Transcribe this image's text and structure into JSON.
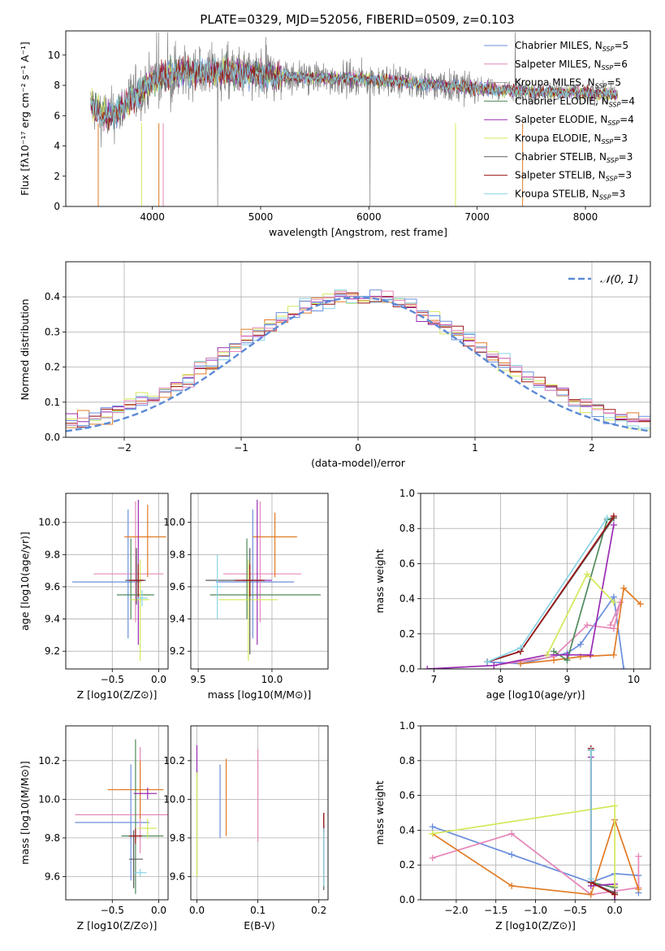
{
  "figure_title": "PLATE=0329, MJD=52056, FIBERID=0509, z=0.103",
  "series_colors": [
    "#6a8fdc",
    "#e687b8",
    "#9a9a9a",
    "#4e8a5a",
    "#9a2bb3",
    "#d4e85a",
    "#5b5b5b",
    "#9b1414",
    "#88d2e6"
  ],
  "chart_data": [
    {
      "id": "spectrum",
      "type": "line",
      "xlabel": "wavelength [Angstrom, rest frame]",
      "ylabel": "Flux [fλ10⁻¹⁷ erg cm⁻² s⁻¹ A⁻¹]",
      "xlim": [
        3200,
        8600
      ],
      "ylim": [
        0,
        11.6
      ],
      "xticks": [
        4000,
        5000,
        6000,
        7000,
        8000
      ],
      "yticks": [
        0,
        2,
        4,
        6,
        8,
        10
      ],
      "grid": false,
      "legend_position": "top-right",
      "continuum": [
        [
          3430,
          6.7
        ],
        [
          3500,
          6.3
        ],
        [
          3600,
          5.9
        ],
        [
          3700,
          6.4
        ],
        [
          3800,
          7.2
        ],
        [
          3900,
          7.6
        ],
        [
          4000,
          8.3
        ],
        [
          4200,
          8.8
        ],
        [
          4500,
          8.9
        ],
        [
          5000,
          8.7
        ],
        [
          5500,
          8.5
        ],
        [
          6000,
          8.4
        ],
        [
          6500,
          8.1
        ],
        [
          7000,
          7.8
        ],
        [
          7500,
          7.6
        ],
        [
          8000,
          7.5
        ],
        [
          8300,
          7.4
        ]
      ],
      "series": [
        {
          "name": "Chabrier MILES, N_SSP=5",
          "color": "#6a8fdc"
        },
        {
          "name": "Salpeter MILES, N_SSP=6",
          "color": "#e687b8"
        },
        {
          "name": "Kroupa MILES, N_SSP=5",
          "color": "#9a9a9a"
        },
        {
          "name": "Chabrier ELODIE, N_SSP=4",
          "color": "#4e8a5a"
        },
        {
          "name": "Salpeter ELODIE, N_SSP=4",
          "color": "#9a2bb3"
        },
        {
          "name": "Kroupa ELODIE, N_SSP=3",
          "color": "#d4e85a"
        },
        {
          "name": "Chabrier STELIB, N_SSP=3",
          "color": "#5b5b5b"
        },
        {
          "name": "Salpeter STELIB, N_SSP=3",
          "color": "#9b1414"
        },
        {
          "name": "Kroupa STELIB, N_SSP=3",
          "color": "#88d2e6"
        }
      ]
    },
    {
      "id": "residuals",
      "type": "line",
      "xlabel": "(data-model)/error",
      "ylabel": "Normed distribution",
      "xlim": [
        -2.5,
        2.5
      ],
      "ylim": [
        0,
        0.5
      ],
      "xticks": [
        -2,
        -1,
        0,
        1,
        2
      ],
      "yticks": [
        0.0,
        0.1,
        0.2,
        0.3,
        0.4
      ],
      "grid": true,
      "legend_position": "top-right",
      "legend_label": "𝒩(0, 1)",
      "bin_width": 0.1,
      "hist_colors": [
        "#e07b25",
        "#9a2bb3",
        "#d4e85a",
        "#88d2e6",
        "#9b1414",
        "#6a8fdc",
        "#e687b8"
      ]
    },
    {
      "id": "age-vs-Z",
      "type": "scatter",
      "xlabel": "Z [log10(Z/Z⊙)]",
      "ylabel": "age  [log10(age/yr)]",
      "xlim": [
        -1.0,
        0.1
      ],
      "ylim": [
        9.09,
        10.18
      ],
      "xticks": [
        -0.5,
        0.0
      ],
      "yticks": [
        9.2,
        9.4,
        9.6,
        9.8,
        10.0
      ],
      "grid": true,
      "points": [
        {
          "x": -0.33,
          "y": 9.63,
          "xerr": [
            0.6,
            0.14
          ],
          "yerr": [
            0.35,
            0.45
          ],
          "color": "#6a8fdc"
        },
        {
          "x": -0.25,
          "y": 9.68,
          "xerr": [
            0.45,
            0.3
          ],
          "yerr": [
            0.3,
            0.45
          ],
          "color": "#e687b8"
        },
        {
          "x": -0.12,
          "y": 9.91,
          "xerr": [
            0.25,
            0.2
          ],
          "yerr": [
            0.25,
            0.2
          ],
          "color": "#e07b25"
        },
        {
          "x": -0.3,
          "y": 9.55,
          "xerr": [
            0.15,
            0.25
          ],
          "yerr": [
            0.15,
            0.35
          ],
          "color": "#4e8a5a"
        },
        {
          "x": -0.22,
          "y": 9.64,
          "xerr": [
            0.08,
            0.05
          ],
          "yerr": [
            0.4,
            0.5
          ],
          "color": "#9a2bb3"
        },
        {
          "x": -0.2,
          "y": 9.52,
          "xerr": [
            0.1,
            0.1
          ],
          "yerr": [
            0.38,
            0.25
          ],
          "color": "#d4e85a"
        },
        {
          "x": -0.24,
          "y": 9.64,
          "xerr": [
            0.12,
            0.1
          ],
          "yerr": [
            0.15,
            0.2
          ],
          "color": "#5b5b5b"
        },
        {
          "x": -0.22,
          "y": 9.64,
          "xerr": [
            0.1,
            0.06
          ],
          "yerr": [
            0.1,
            0.1
          ],
          "color": "#9b1414"
        },
        {
          "x": -0.18,
          "y": 9.53,
          "xerr": [
            0.06,
            0.06
          ],
          "yerr": [
            0.05,
            0.05
          ],
          "color": "#88d2e6"
        }
      ]
    },
    {
      "id": "age-vs-mass",
      "type": "scatter",
      "xlabel": "mass [log10(M/M⊙)]",
      "ylabel": "",
      "xlim": [
        9.45,
        10.38
      ],
      "ylim": [
        9.09,
        10.18
      ],
      "xticks": [
        9.5,
        10.0
      ],
      "yticks": [
        9.2,
        9.4,
        9.6,
        9.8,
        10.0
      ],
      "grid": true,
      "points": [
        {
          "x": 9.87,
          "y": 9.63,
          "xerr": [
            0.25,
            0.28
          ],
          "yerr": [
            0.35,
            0.45
          ],
          "color": "#6a8fdc"
        },
        {
          "x": 9.92,
          "y": 9.68,
          "xerr": [
            0.25,
            0.28
          ],
          "yerr": [
            0.3,
            0.45
          ],
          "color": "#e687b8"
        },
        {
          "x": 10.02,
          "y": 9.91,
          "xerr": [
            0.15,
            0.15
          ],
          "yerr": [
            0.25,
            0.15
          ],
          "color": "#e07b25"
        },
        {
          "x": 9.83,
          "y": 9.55,
          "xerr": [
            0.25,
            0.5
          ],
          "yerr": [
            0.15,
            0.35
          ],
          "color": "#4e8a5a"
        },
        {
          "x": 9.9,
          "y": 9.64,
          "xerr": [
            0.1,
            0.1
          ],
          "yerr": [
            0.4,
            0.5
          ],
          "color": "#9a2bb3"
        },
        {
          "x": 9.84,
          "y": 9.52,
          "xerr": [
            0.2,
            0.2
          ],
          "yerr": [
            0.38,
            0.25
          ],
          "color": "#d4e85a"
        },
        {
          "x": 9.85,
          "y": 9.64,
          "xerr": [
            0.3,
            0.1
          ],
          "yerr": [
            0.46,
            0.2
          ],
          "color": "#5b5b5b"
        },
        {
          "x": 9.85,
          "y": 9.64,
          "xerr": [
            0.1,
            0.1
          ],
          "yerr": [
            0.1,
            0.1
          ],
          "color": "#9b1414"
        },
        {
          "x": 9.63,
          "y": 9.6,
          "xerr": [
            0.03,
            0.03
          ],
          "yerr": [
            0.2,
            0.2
          ],
          "color": "#88d2e6"
        }
      ]
    },
    {
      "id": "mass-weight-vs-age",
      "type": "line",
      "xlabel": "age  [log10(age/yr)]",
      "ylabel": "mass weight",
      "xlim": [
        6.8,
        10.25
      ],
      "ylim": [
        0,
        1.0
      ],
      "xticks": [
        7,
        8,
        9,
        10
      ],
      "yticks": [
        0.0,
        0.2,
        0.4,
        0.6,
        0.8,
        1.0
      ],
      "grid": true,
      "series": [
        {
          "color": "#6a8fdc",
          "x": [
            7.8,
            8.3,
            9.0,
            9.2,
            9.7,
            9.85
          ],
          "y": [
            0.04,
            0.03,
            0.09,
            0.14,
            0.41,
            0.0
          ]
        },
        {
          "color": "#e687b8",
          "x": [
            7.9,
            8.8,
            9.3,
            9.7,
            9.8,
            9.65
          ],
          "y": [
            0.02,
            0.07,
            0.25,
            0.23,
            0.38,
            0.25
          ]
        },
        {
          "color": "#e07b25",
          "x": [
            8.3,
            8.8,
            9.2,
            9.7,
            9.85,
            10.1
          ],
          "y": [
            0.03,
            0.05,
            0.07,
            0.08,
            0.46,
            0.37
          ]
        },
        {
          "color": "#4e8a5a",
          "x": [
            8.8,
            9.0,
            9.6,
            9.7
          ],
          "y": [
            0.1,
            0.05,
            0.85,
            0.86
          ]
        },
        {
          "color": "#9a2bb3",
          "x": [
            6.9,
            7.9,
            8.7,
            9.0,
            9.35,
            9.7
          ],
          "y": [
            0.0,
            0.02,
            0.08,
            0.08,
            0.08,
            0.82
          ]
        },
        {
          "color": "#d4e85a",
          "x": [
            8.7,
            9.3,
            9.7
          ],
          "y": [
            0.08,
            0.54,
            0.38
          ]
        },
        {
          "color": "#5b5b5b",
          "x": [
            7.8,
            8.3,
            9.7
          ],
          "y": [
            0.04,
            0.1,
            0.86
          ]
        },
        {
          "color": "#9b1414",
          "x": [
            7.8,
            8.3,
            9.7
          ],
          "y": [
            0.04,
            0.1,
            0.87
          ]
        },
        {
          "color": "#88d2e6",
          "x": [
            7.8,
            8.3,
            9.6
          ],
          "y": [
            0.04,
            0.12,
            0.86
          ]
        }
      ]
    },
    {
      "id": "mass-vs-Z",
      "type": "scatter",
      "xlabel": "Z [log10(Z/Z⊙)]",
      "ylabel": "mass [log10(M/M⊙)]",
      "xlim": [
        -1.0,
        0.1
      ],
      "ylim": [
        9.48,
        10.38
      ],
      "xticks": [
        -0.5,
        0.0
      ],
      "yticks": [
        9.6,
        9.8,
        10.0,
        10.2
      ],
      "grid": true,
      "points": [
        {
          "x": -0.3,
          "y": 9.88,
          "xerr": [
            0.6,
            0.2
          ],
          "yerr": [
            0.3,
            0.3
          ],
          "color": "#6a8fdc"
        },
        {
          "x": -0.2,
          "y": 9.92,
          "xerr": [
            0.7,
            0.3
          ],
          "yerr": [
            0.2,
            0.35
          ],
          "color": "#e687b8"
        },
        {
          "x": -0.2,
          "y": 10.05,
          "xerr": [
            0.35,
            0.25
          ],
          "yerr": [
            0.15,
            0.15
          ],
          "color": "#e07b25"
        },
        {
          "x": -0.25,
          "y": 9.81,
          "xerr": [
            0.15,
            0.3
          ],
          "yerr": [
            0.3,
            0.5
          ],
          "color": "#4e8a5a"
        },
        {
          "x": -0.12,
          "y": 10.03,
          "xerr": [
            0.15,
            0.1
          ],
          "yerr": [
            0.03,
            0.03
          ],
          "color": "#9a2bb3"
        },
        {
          "x": -0.12,
          "y": 9.85,
          "xerr": [
            0.1,
            0.1
          ],
          "yerr": [
            0.05,
            0.05
          ],
          "color": "#d4e85a"
        },
        {
          "x": -0.27,
          "y": 9.69,
          "xerr": [
            0.05,
            0.1
          ],
          "yerr": [
            0.15,
            0.15
          ],
          "color": "#5b5b5b"
        },
        {
          "x": -0.25,
          "y": 9.81,
          "xerr": [
            0.07,
            0.07
          ],
          "yerr": [
            0.04,
            0.04
          ],
          "color": "#9b1414"
        },
        {
          "x": -0.2,
          "y": 9.62,
          "xerr": [
            0.07,
            0.07
          ],
          "yerr": [
            0.02,
            0.02
          ],
          "color": "#88d2e6"
        }
      ]
    },
    {
      "id": "mass-vs-EBV",
      "type": "scatter",
      "xlabel": "E(B-V)",
      "ylabel": "",
      "xlim": [
        -0.01,
        0.215
      ],
      "ylim": [
        9.48,
        10.38
      ],
      "xticks": [
        0.0,
        0.1,
        0.2
      ],
      "yticks": [
        9.6,
        9.8,
        10.0,
        10.2
      ],
      "grid": true,
      "points": [
        {
          "x": 0.038,
          "y": 9.99,
          "xerr": [
            0,
            0
          ],
          "yerr": [
            0.19,
            0.19
          ],
          "color": "#6a8fdc"
        },
        {
          "x": 0.1,
          "y": 10.02,
          "xerr": [
            0,
            0
          ],
          "yerr": [
            0.24,
            0.24
          ],
          "color": "#e687b8"
        },
        {
          "x": 0.048,
          "y": 10.01,
          "xerr": [
            0,
            0
          ],
          "yerr": [
            0.2,
            0.2
          ],
          "color": "#e07b25"
        },
        {
          "x": 0.0,
          "y": 9.85,
          "xerr": [
            0,
            0
          ],
          "yerr": [
            0.25,
            0.3
          ],
          "color": "#4e8a5a"
        },
        {
          "x": 0.0,
          "y": 10.2,
          "xerr": [
            0,
            0
          ],
          "yerr": [
            0.08,
            0.08
          ],
          "color": "#9a2bb3"
        },
        {
          "x": 0.0,
          "y": 9.87,
          "xerr": [
            0,
            0
          ],
          "yerr": [
            0.27,
            0.27
          ],
          "color": "#d4e85a"
        },
        {
          "x": 0.208,
          "y": 9.73,
          "xerr": [
            0,
            0
          ],
          "yerr": [
            0.2,
            0.2
          ],
          "color": "#5b5b5b"
        },
        {
          "x": 0.208,
          "y": 9.88,
          "xerr": [
            0,
            0
          ],
          "yerr": [
            0.05,
            0.05
          ],
          "color": "#9b1414"
        },
        {
          "x": 0.208,
          "y": 9.7,
          "xerr": [
            0,
            0
          ],
          "yerr": [
            0.15,
            0.15
          ],
          "color": "#88d2e6"
        }
      ]
    },
    {
      "id": "mass-weight-vs-Z",
      "type": "line",
      "xlabel": "Z [log10(Z/Z⊙)]",
      "ylabel": "mass weight",
      "xlim": [
        -2.45,
        0.45
      ],
      "ylim": [
        0,
        1.0
      ],
      "xticks": [
        -2.0,
        -1.5,
        -1.0,
        -0.5,
        0.0
      ],
      "yticks": [
        0.0,
        0.2,
        0.4,
        0.6,
        0.8,
        1.0
      ],
      "grid": true,
      "series": [
        {
          "color": "#6a8fdc",
          "x": [
            -2.3,
            -1.3,
            -0.3,
            0.0,
            0.3,
            0.3
          ],
          "y": [
            0.42,
            0.26,
            0.1,
            0.15,
            0.14,
            0.04
          ]
        },
        {
          "color": "#e687b8",
          "x": [
            -2.3,
            -1.3,
            -0.3,
            0.3,
            0.3
          ],
          "y": [
            0.24,
            0.38,
            0.03,
            0.07,
            0.25
          ]
        },
        {
          "color": "#e07b25",
          "x": [
            -2.3,
            -1.3,
            -0.3,
            0.0,
            0.3
          ],
          "y": [
            0.38,
            0.08,
            0.03,
            0.46,
            0.06
          ]
        },
        {
          "color": "#4e8a5a",
          "x": [
            -0.3,
            -0.3,
            0.0
          ],
          "y": [
            0.86,
            0.1,
            0.07
          ]
        },
        {
          "color": "#9a2bb3",
          "x": [
            -0.3,
            -0.3,
            0.0,
            0.0
          ],
          "y": [
            0.82,
            0.08,
            0.09,
            0.0
          ]
        },
        {
          "color": "#d4e85a",
          "x": [
            -2.3,
            0.0,
            0.0
          ],
          "y": [
            0.38,
            0.54,
            0.08
          ]
        },
        {
          "color": "#5b5b5b",
          "x": [
            -0.3,
            -0.3,
            0.0
          ],
          "y": [
            0.86,
            0.1,
            0.04
          ]
        },
        {
          "color": "#9b1414",
          "x": [
            -0.3,
            -0.3,
            0.0
          ],
          "y": [
            0.87,
            0.1,
            0.03
          ]
        },
        {
          "color": "#88d2e6",
          "x": [
            -0.3,
            -0.3
          ],
          "y": [
            0.86,
            0.12
          ]
        }
      ]
    }
  ]
}
